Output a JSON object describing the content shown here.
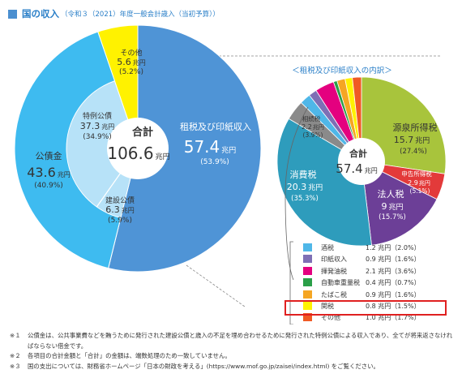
{
  "header": {
    "title": "国の収入",
    "subtitle": "（令和３（2021）年度一般会計歳入（当初予算））"
  },
  "main_chart": {
    "center_label": "合計",
    "center_value": "106.6",
    "center_unit": "兆円"
  },
  "detail_chart": {
    "title": "＜租税及び印紙収入の内訳＞",
    "center_label": "合計",
    "center_value": "57.4",
    "center_unit": "兆円"
  },
  "chart_data": [
    {
      "type": "pie",
      "title": "",
      "slices": [
        {
          "name": "租税及び印紙収入",
          "value": 57.4,
          "unit": "兆円",
          "pct": "53.9%",
          "color": "#4f94d6"
        },
        {
          "name": "建設公債",
          "value": 6.3,
          "unit": "兆円",
          "pct": "5.9%",
          "color": "#b7e2f8"
        },
        {
          "name": "特例公債",
          "value": 37.3,
          "unit": "兆円",
          "pct": "34.9%",
          "color": "#b7e2f8"
        },
        {
          "name": "その他",
          "value": 5.6,
          "unit": "兆円",
          "pct": "5.2%",
          "color": "#fff200"
        }
      ],
      "group_label": {
        "name": "公債金",
        "value": "43.6",
        "unit": "兆円",
        "pct": "40.9%",
        "color": "#3ebbf0"
      }
    },
    {
      "type": "pie",
      "title": "＜租税及び印紙収入の内訳＞",
      "slices": [
        {
          "name": "源泉所得税",
          "value": 15.7,
          "unit": "兆円",
          "pct": "27.4%",
          "color": "#a8c43c"
        },
        {
          "name": "申告所得税",
          "value": 2.9,
          "unit": "兆円",
          "pct": "5.1%",
          "color": "#e33a3a"
        },
        {
          "name": "法人税",
          "value": 9.0,
          "unit": "兆円",
          "pct": "15.7%",
          "color": "#6c3f97"
        },
        {
          "name": "消費税",
          "value": 20.3,
          "unit": "兆円",
          "pct": "35.3%",
          "color": "#2e9cbc"
        },
        {
          "name": "相続税",
          "value": 2.2,
          "unit": "兆円",
          "pct": "3.9%",
          "color": "#8a8a8a"
        },
        {
          "name": "酒税",
          "value": 1.2,
          "unit": "兆円",
          "pct": "2.0%",
          "color": "#4fb7e8"
        },
        {
          "name": "印紙収入",
          "value": 0.9,
          "unit": "兆円",
          "pct": "1.6%",
          "color": "#7e6fb5"
        },
        {
          "name": "揮発油税",
          "value": 2.1,
          "unit": "兆円",
          "pct": "3.6%",
          "color": "#e4007f"
        },
        {
          "name": "自動車重量税",
          "value": 0.4,
          "unit": "兆円",
          "pct": "0.7%",
          "color": "#2a9f48"
        },
        {
          "name": "たばこ税",
          "value": 0.9,
          "unit": "兆円",
          "pct": "1.6%",
          "color": "#f5a623"
        },
        {
          "name": "関税",
          "value": 0.8,
          "unit": "兆円",
          "pct": "1.5%",
          "color": "#fff200"
        },
        {
          "name": "その他",
          "value": 1.0,
          "unit": "兆円",
          "pct": "1.7%",
          "color": "#f05a24"
        }
      ]
    }
  ],
  "legend": [
    {
      "name": "酒税",
      "value": "1.2 兆円（2.0%）",
      "color": "#4fb7e8"
    },
    {
      "name": "印紙収入",
      "value": "0.9 兆円（1.6%）",
      "color": "#7e6fb5"
    },
    {
      "name": "揮発油税",
      "value": "2.1 兆円（3.6%）",
      "color": "#e4007f"
    },
    {
      "name": "自動車重量税",
      "value": "0.4 兆円（0.7%）",
      "color": "#2a9f48"
    },
    {
      "name": "たばこ税",
      "value": "0.9 兆円（1.6%）",
      "color": "#f5a623"
    },
    {
      "name": "関税",
      "value": "0.8 兆円（1.5%）",
      "color": "#fff200"
    },
    {
      "name": "その他",
      "value": "1.0 兆円（1.7%）",
      "color": "#f05a24"
    }
  ],
  "notes": [
    {
      "mark": "※１",
      "text": "公債金は、公共事業費などを賄うために発行された建設公債と歳入の不足を埋め合わせるために発行された特例公債による収入であり、全てが将来返さなければならない借金です。"
    },
    {
      "mark": "※２",
      "text": "各項目の合計金額と「合計」の金額は、端数処理のため一致していません。"
    },
    {
      "mark": "※３",
      "text": "国の支出については、財務省ホームページ「日本の財政を考える」(https://www.mof.go.jp/zaisei/index.html) をご覧ください。"
    }
  ]
}
